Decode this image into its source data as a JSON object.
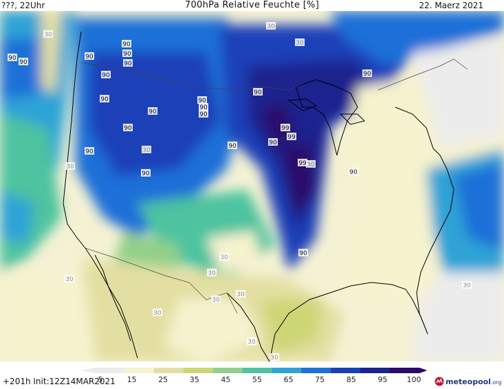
{
  "header": {
    "left": "???, 22Uhr",
    "title": "700hPa Relative Feuchte [%]",
    "date": "22. Maerz 2021"
  },
  "footer": {
    "run": "+201h  Init:12Z14MAR2021",
    "brand": "meteopool",
    "brand_suffix": ".org"
  },
  "legend": {
    "ticks": [
      "5",
      "15",
      "25",
      "35",
      "45",
      "55",
      "65",
      "75",
      "85",
      "95",
      "100"
    ],
    "colors": [
      "#ececec",
      "#f6f3cf",
      "#e3dfa2",
      "#cdd675",
      "#92d08a",
      "#4ec39f",
      "#2fa3d6",
      "#1f6fd8",
      "#1a41b8",
      "#1a238e",
      "#2a0a6a"
    ]
  },
  "map_labels": [
    {
      "text": "30"
    },
    {
      "text": "90"
    },
    {
      "text": "90"
    },
    {
      "text": "90"
    },
    {
      "text": "90"
    },
    {
      "text": "90"
    },
    {
      "text": "90"
    },
    {
      "text": "90"
    },
    {
      "text": "90"
    },
    {
      "text": "90"
    },
    {
      "text": "90"
    },
    {
      "text": "90"
    },
    {
      "text": "90"
    },
    {
      "text": "90"
    },
    {
      "text": "30"
    },
    {
      "text": "30"
    },
    {
      "text": "90"
    },
    {
      "text": "90"
    },
    {
      "text": "90"
    },
    {
      "text": "99"
    },
    {
      "text": "90"
    },
    {
      "text": "99"
    },
    {
      "text": "99"
    },
    {
      "text": "30"
    },
    {
      "text": "90"
    },
    {
      "text": "30"
    },
    {
      "text": "30"
    },
    {
      "text": "30"
    },
    {
      "text": "30"
    },
    {
      "text": "30"
    },
    {
      "text": "30"
    },
    {
      "text": "30"
    },
    {
      "text": "90"
    },
    {
      "text": "30"
    },
    {
      "text": "30"
    },
    {
      "text": "30"
    },
    {
      "text": "90"
    },
    {
      "text": "90"
    },
    {
      "text": "30"
    }
  ]
}
